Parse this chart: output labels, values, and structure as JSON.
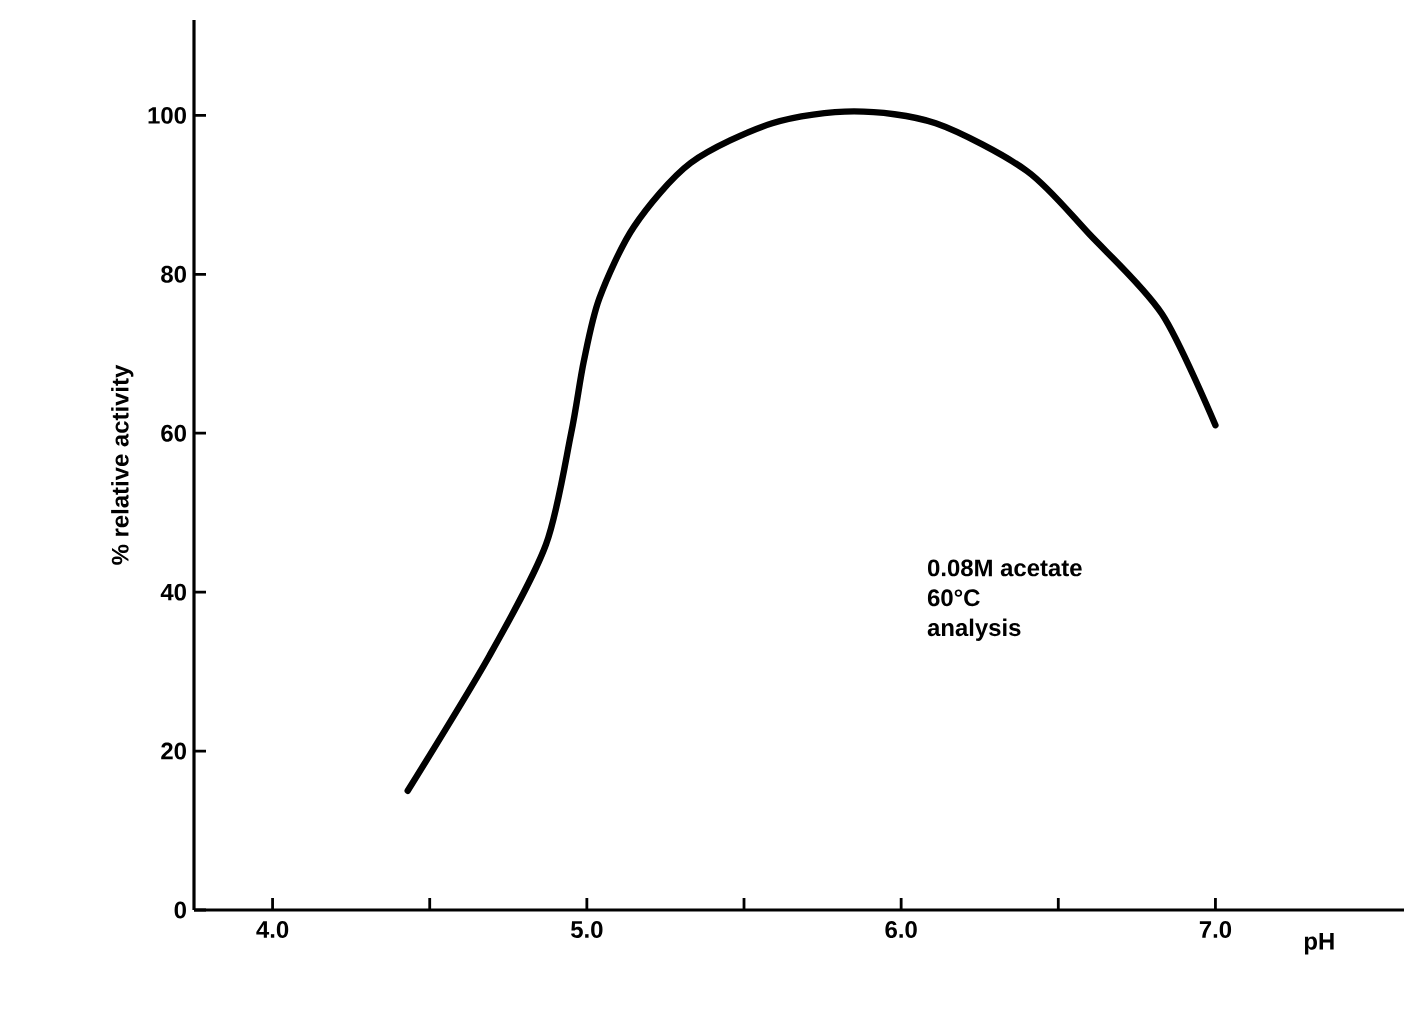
{
  "chart_data": {
    "type": "line",
    "xlabel": "pH",
    "ylabel": "% relative activity",
    "x": [
      4.43,
      4.69,
      4.87,
      4.95,
      4.99,
      5.04,
      5.15,
      5.33,
      5.59,
      5.85,
      6.11,
      6.4,
      6.6,
      6.83,
      7.0
    ],
    "series": [
      {
        "color": "#000000",
        "values": [
          15,
          32,
          46,
          60,
          69,
          77,
          86,
          94,
          99,
          100.5,
          99,
          93,
          85,
          75,
          61
        ]
      }
    ],
    "xlim": [
      3.75,
      7.6
    ],
    "ylim": [
      0,
      112
    ],
    "xticks": [
      {
        "value": 4.0,
        "label": "4.0"
      },
      {
        "value": 4.5,
        "label": null
      },
      {
        "value": 5.0,
        "label": "5.0"
      },
      {
        "value": 5.5,
        "label": null
      },
      {
        "value": 6.0,
        "label": "6.0"
      },
      {
        "value": 6.5,
        "label": null
      },
      {
        "value": 7.0,
        "label": "7.0"
      }
    ],
    "yticks": [
      0,
      20,
      40,
      60,
      80,
      100
    ],
    "line_style": "solid",
    "grid": false,
    "annotations": [
      "0.08M acetate",
      "60°C",
      "analysis"
    ]
  }
}
